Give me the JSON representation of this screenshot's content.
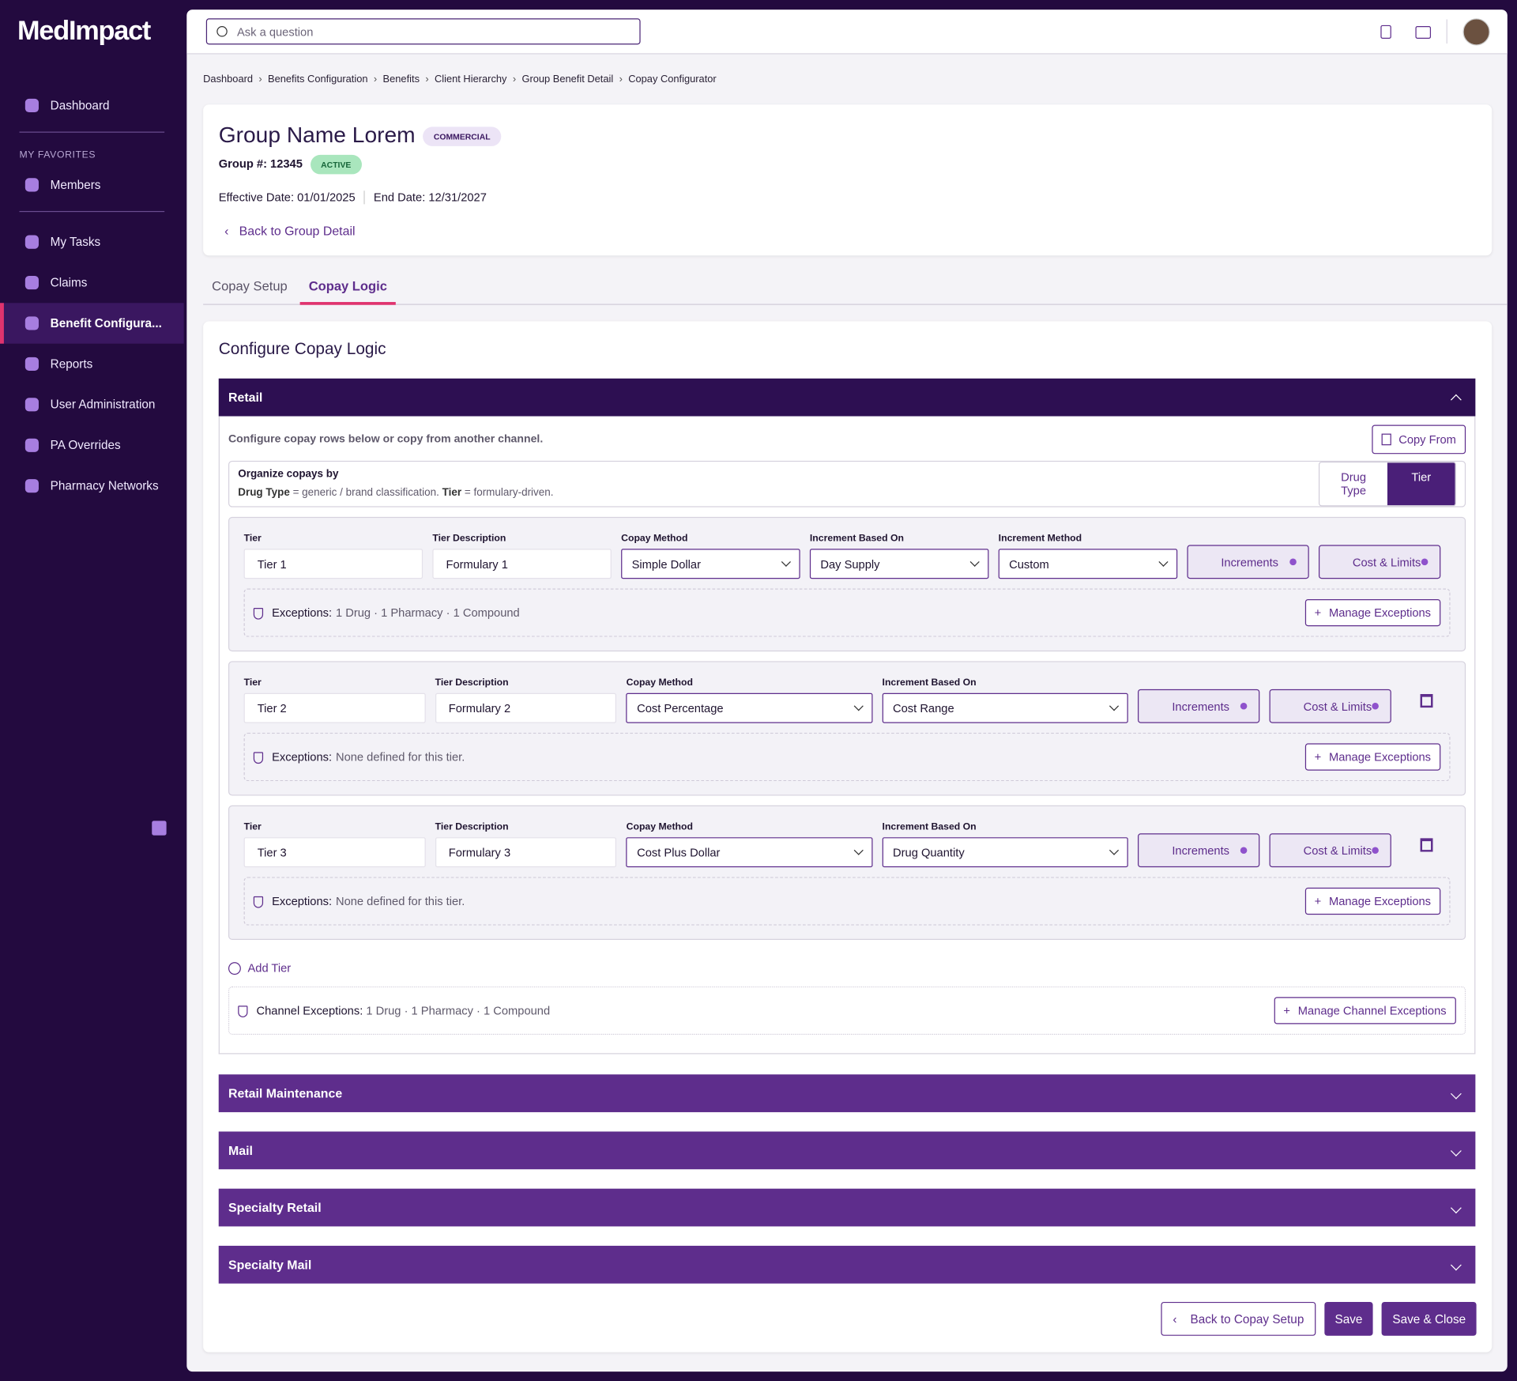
{
  "sidebar": {
    "logo": "MedImpact",
    "top_nav": [
      "Dashboard"
    ],
    "favorites_heading": "MY FAVORITES",
    "favorites": [
      "Members"
    ],
    "nav": [
      "My Tasks",
      "Claims",
      "Benefit Configura...",
      "Reports",
      "User Administration",
      "PA Overrides",
      "Pharmacy Networks"
    ],
    "active_nav_index": 2
  },
  "topbar": {
    "search_placeholder": "Ask a question"
  },
  "breadcrumbs": [
    "Dashboard",
    "Benefits Configuration",
    "Benefits",
    "Client Hierarchy",
    "Group Benefit Detail",
    "Copay Configurator"
  ],
  "header": {
    "title": "Group Name Lorem",
    "badge": "COMMERCIAL",
    "group_number": "Group #: 12345",
    "status": "ACTIVE",
    "effective_date": "Effective Date: 01/01/2025",
    "end_date": "End Date: 12/31/2027",
    "back_link": "Back to Group Detail"
  },
  "tabs": {
    "items": [
      "Copay Setup",
      "Copay Logic"
    ],
    "active_index": 1
  },
  "section_title": "Configure Copay Logic",
  "retail": {
    "title": "Retail",
    "intro": "Configure copay rows below or copy from another channel.",
    "copy_from": "Copy From",
    "organize": {
      "heading": "Organize copays by",
      "term1": "Drug Type",
      "desc1": " = generic / brand classification. ",
      "term2": "Tier",
      "desc2": " = formulary-driven.",
      "options": [
        "Drug Type",
        "Tier"
      ],
      "active_index": 1
    },
    "rows": [
      {
        "fields": [
          {
            "label": "Tier",
            "value": "Tier 1",
            "select": false
          },
          {
            "label": "Tier Description",
            "value": "Formulary 1",
            "select": false
          },
          {
            "label": "Copay Method",
            "value": "Simple Dollar",
            "select": true
          },
          {
            "label": "Increment Based On",
            "value": "Day Supply",
            "select": true
          },
          {
            "label": "Increment Method",
            "value": "Custom",
            "select": true
          }
        ],
        "buttons": [
          "Increments",
          "Cost & Limits"
        ],
        "deletable": false,
        "exceptions_label": "Exceptions:",
        "exceptions": "1 Drug · 1 Pharmacy · 1 Compound",
        "manage": "Manage Exceptions"
      },
      {
        "fields": [
          {
            "label": "Tier",
            "value": "Tier 2",
            "select": false
          },
          {
            "label": "Tier Description",
            "value": "Formulary 2",
            "select": false
          },
          {
            "label": "Copay Method",
            "value": "Cost Percentage",
            "select": true
          },
          {
            "label": "Increment Based On",
            "value": "Cost Range",
            "select": true
          }
        ],
        "buttons": [
          "Increments",
          "Cost & Limits"
        ],
        "deletable": true,
        "exceptions_label": "Exceptions:",
        "exceptions": "None defined for this tier.",
        "manage": "Manage Exceptions"
      },
      {
        "fields": [
          {
            "label": "Tier",
            "value": "Tier 3",
            "select": false
          },
          {
            "label": "Tier Description",
            "value": "Formulary 3",
            "select": false
          },
          {
            "label": "Copay Method",
            "value": "Cost Plus Dollar",
            "select": true
          },
          {
            "label": "Increment Based On",
            "value": "Drug Quantity",
            "select": true
          }
        ],
        "buttons": [
          "Increments",
          "Cost & Limits"
        ],
        "deletable": true,
        "exceptions_label": "Exceptions:",
        "exceptions": "None defined for this tier.",
        "manage": "Manage Exceptions"
      }
    ],
    "add_tier": "Add Tier",
    "channel_exceptions_label": "Channel Exceptions:",
    "channel_exceptions": "1 Drug · 1 Pharmacy · 1 Compound",
    "manage_channel": "Manage Channel Exceptions"
  },
  "collapsed_channels": [
    "Retail Maintenance",
    "Mail",
    "Specialty Retail",
    "Specialty Mail"
  ],
  "footer": {
    "back": "Back to Copay Setup",
    "save": "Save",
    "save_close": "Save & Close"
  }
}
